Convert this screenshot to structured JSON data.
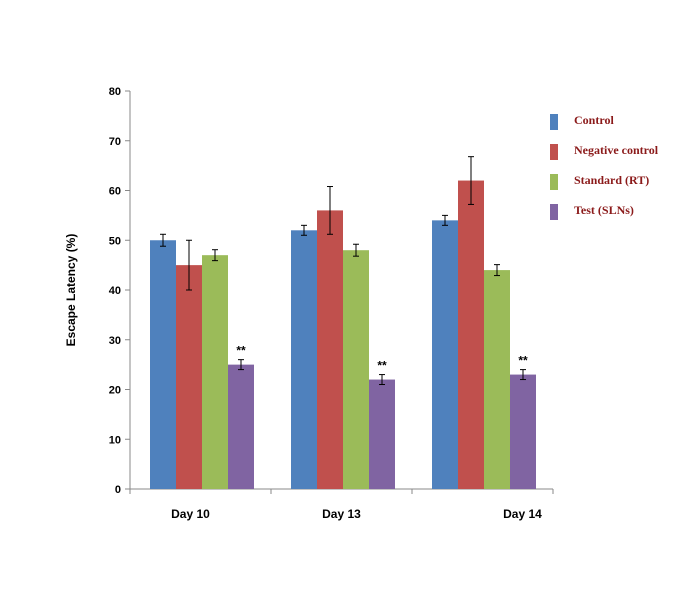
{
  "chart_data": {
    "type": "bar",
    "categories": [
      "Day 10",
      "Day 13",
      "Day 14"
    ],
    "ylabel": "Escape Latency (%)",
    "xlabel": "",
    "ylim": [
      0,
      80
    ],
    "yticks": [
      0,
      10,
      20,
      30,
      40,
      50,
      60,
      70,
      80
    ],
    "legend_position": "right",
    "series": [
      {
        "name": "Control",
        "color": "#4f81bd",
        "values": [
          50,
          52,
          54
        ],
        "errors": [
          1.2,
          1.0,
          1.0
        ]
      },
      {
        "name": "Negative control",
        "color": "#c0504d",
        "values": [
          45,
          56,
          62
        ],
        "errors": [
          5.0,
          4.8,
          4.8
        ]
      },
      {
        "name": "Standard (RT)",
        "color": "#9bbb59",
        "values": [
          47,
          48,
          44
        ],
        "errors": [
          1.1,
          1.2,
          1.1
        ]
      },
      {
        "name": "Test (SLNs)",
        "color": "#8064a2",
        "values": [
          25,
          22,
          23
        ],
        "errors": [
          1.0,
          1.0,
          1.0
        ]
      }
    ],
    "annotations": [
      {
        "series": 3,
        "category": 0,
        "text": "**"
      },
      {
        "series": 3,
        "category": 1,
        "text": "**"
      },
      {
        "series": 3,
        "category": 2,
        "text": "**"
      }
    ]
  }
}
